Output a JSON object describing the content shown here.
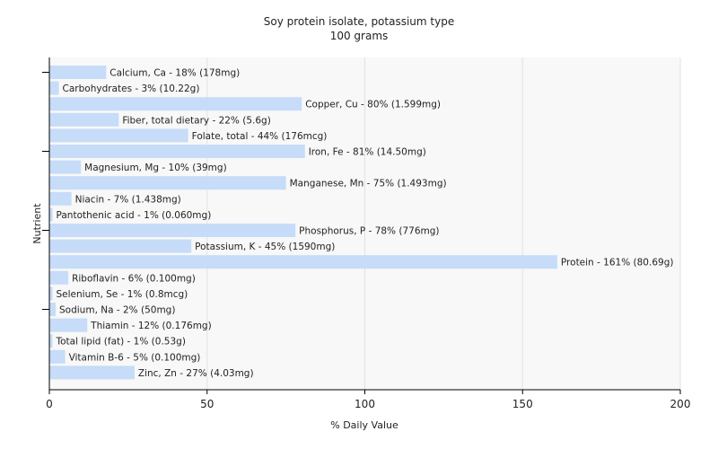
{
  "chart_data": {
    "type": "bar",
    "orientation": "horizontal",
    "title": "Soy protein isolate, potassium type",
    "subtitle": "100 grams",
    "xlabel": "% Daily Value",
    "ylabel": "Nutrient",
    "xlim": [
      0,
      200
    ],
    "xticks": [
      0,
      50,
      100,
      150,
      200
    ],
    "grid": true,
    "bar_color": "#c6dcf8",
    "plot_background": "#f8f8f8",
    "categories": [
      "Calcium, Ca",
      "Carbohydrates",
      "Copper, Cu",
      "Fiber, total dietary",
      "Folate, total",
      "Iron, Fe",
      "Magnesium, Mg",
      "Manganese, Mn",
      "Niacin",
      "Pantothenic acid",
      "Phosphorus, P",
      "Potassium, K",
      "Protein",
      "Riboflavin",
      "Selenium, Se",
      "Sodium, Na",
      "Thiamin",
      "Total lipid (fat)",
      "Vitamin B-6",
      "Zinc, Zn"
    ],
    "values": [
      18,
      3,
      80,
      22,
      44,
      81,
      10,
      75,
      7,
      1,
      78,
      45,
      161,
      6,
      1,
      2,
      12,
      1,
      5,
      27
    ],
    "labels": [
      "Calcium, Ca - 18% (178mg)",
      "Carbohydrates - 3% (10.22g)",
      "Copper, Cu - 80% (1.599mg)",
      "Fiber, total dietary - 22% (5.6g)",
      "Folate, total - 44% (176mcg)",
      "Iron, Fe - 81% (14.50mg)",
      "Magnesium, Mg - 10% (39mg)",
      "Manganese, Mn - 75% (1.493mg)",
      "Niacin - 7% (1.438mg)",
      "Pantothenic acid - 1% (0.060mg)",
      "Phosphorus, P - 78% (776mg)",
      "Potassium, K - 45% (1590mg)",
      "Protein - 161% (80.69g)",
      "Riboflavin - 6% (0.100mg)",
      "Selenium, Se - 1% (0.8mcg)",
      "Sodium, Na - 2% (50mg)",
      "Thiamin - 12% (0.176mg)",
      "Total lipid (fat) - 1% (0.53g)",
      "Vitamin B-6 - 5% (0.100mg)",
      "Zinc, Zn - 27% (4.03mg)"
    ]
  }
}
